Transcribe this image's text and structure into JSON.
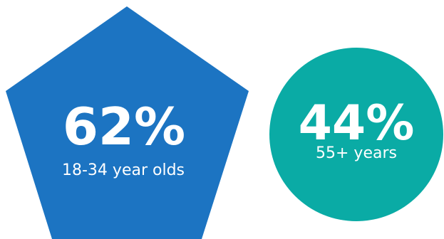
{
  "stats": [
    {
      "value": "62%",
      "label": "18-34 year olds",
      "shape": "pentagon",
      "color": "#1c74c2"
    },
    {
      "value": "44%",
      "label": "55+ years",
      "shape": "circle",
      "color": "#0aaba5"
    }
  ]
}
